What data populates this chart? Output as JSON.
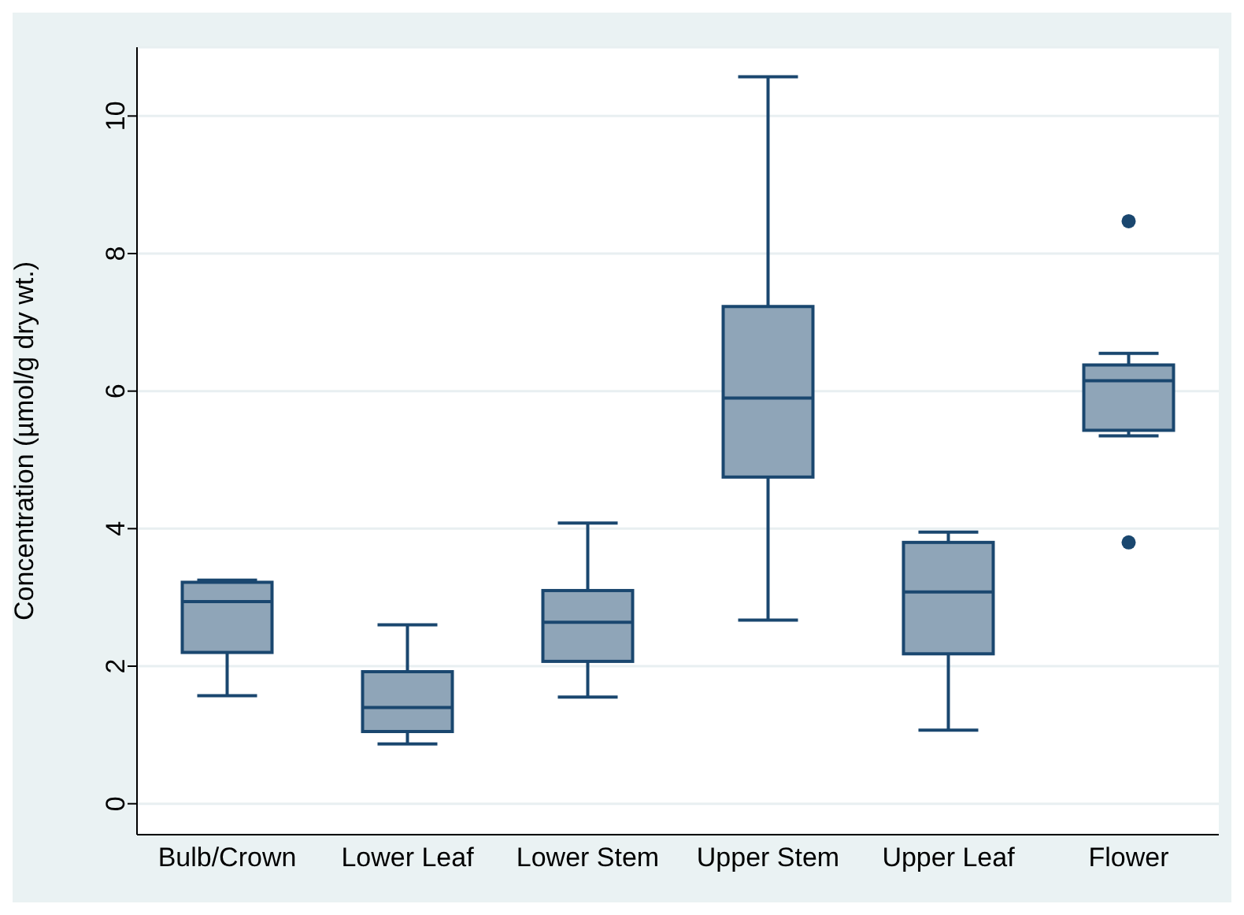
{
  "chart_data": {
    "type": "box",
    "ylabel": "Concentration (µmol/g dry wt.)",
    "categories": [
      "Bulb/Crown",
      "Lower Leaf",
      "Lower Stem",
      "Upper Stem",
      "Upper Leaf",
      "Flower"
    ],
    "color": "#8fa5b8",
    "boxes": [
      {
        "low": 1.57,
        "q1": 2.2,
        "median": 2.94,
        "q3": 3.22,
        "high": 3.25
      },
      {
        "low": 0.87,
        "q1": 1.05,
        "median": 1.4,
        "q3": 1.92,
        "high": 2.6
      },
      {
        "low": 1.55,
        "q1": 2.07,
        "median": 2.64,
        "q3": 3.1,
        "high": 4.08
      },
      {
        "low": 2.67,
        "q1": 4.75,
        "median": 5.9,
        "q3": 7.23,
        "high": 10.57
      },
      {
        "low": 1.07,
        "q1": 2.18,
        "median": 3.08,
        "q3": 3.8,
        "high": 3.95
      },
      {
        "low": 5.35,
        "q1": 5.43,
        "median": 6.15,
        "q3": 6.38,
        "high": 6.55,
        "outliers": [
          8.47,
          3.8
        ]
      }
    ],
    "ylim": [
      -0.45,
      11
    ],
    "yticks": [
      0,
      2,
      4,
      6,
      8,
      10
    ],
    "grid": "y"
  }
}
